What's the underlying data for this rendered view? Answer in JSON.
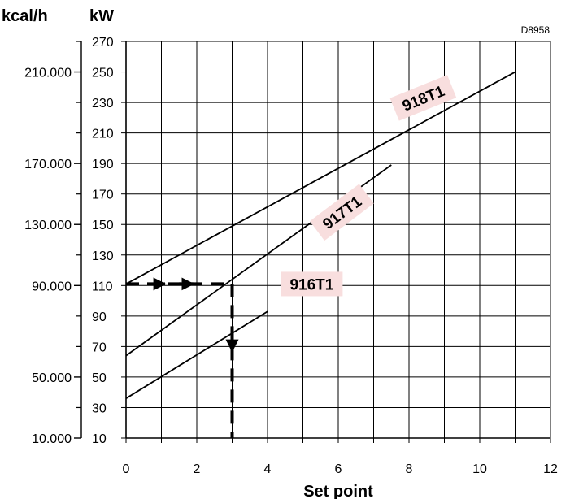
{
  "chart_data": {
    "type": "line",
    "code": "D8958",
    "xlabel": "Set point",
    "ylabel_left_outer": "kcal/h",
    "ylabel_left_inner": "kW",
    "xlim": [
      0,
      12
    ],
    "ylim": [
      10,
      270
    ],
    "x_ticks": [
      "0",
      "2",
      "4",
      "6",
      "8",
      "10",
      "12"
    ],
    "y_ticks": [
      "10",
      "30",
      "50",
      "70",
      "90",
      "110",
      "130",
      "150",
      "170",
      "190",
      "210",
      "230",
      "250",
      "270"
    ],
    "kcal_ticks": [
      {
        "label": "10.000",
        "kw": 10
      },
      {
        "label": "50.000",
        "kw": 50
      },
      {
        "label": "90.000",
        "kw": 110
      },
      {
        "label": "130.000",
        "kw": 150
      },
      {
        "label": "170.000",
        "kw": 190
      },
      {
        "label": "210.000",
        "kw": 250
      }
    ],
    "kcal_minor_ticks_kw": [
      30,
      70,
      90,
      130,
      170,
      210,
      230,
      270
    ],
    "grid": true,
    "series": [
      {
        "name": "916T1",
        "x": [
          0,
          4
        ],
        "y": [
          36,
          93
        ]
      },
      {
        "name": "917T1",
        "x": [
          0,
          7.5
        ],
        "y": [
          64,
          189
        ]
      },
      {
        "name": "918T1",
        "x": [
          0,
          11
        ],
        "y": [
          111,
          250
        ]
      }
    ],
    "annotation": {
      "style": "dashed-arrows",
      "horizontal": {
        "from_x": 0,
        "to_x": 3,
        "y": 111
      },
      "vertical": {
        "x": 3,
        "from_y": 111,
        "to_y": 10
      }
    }
  }
}
